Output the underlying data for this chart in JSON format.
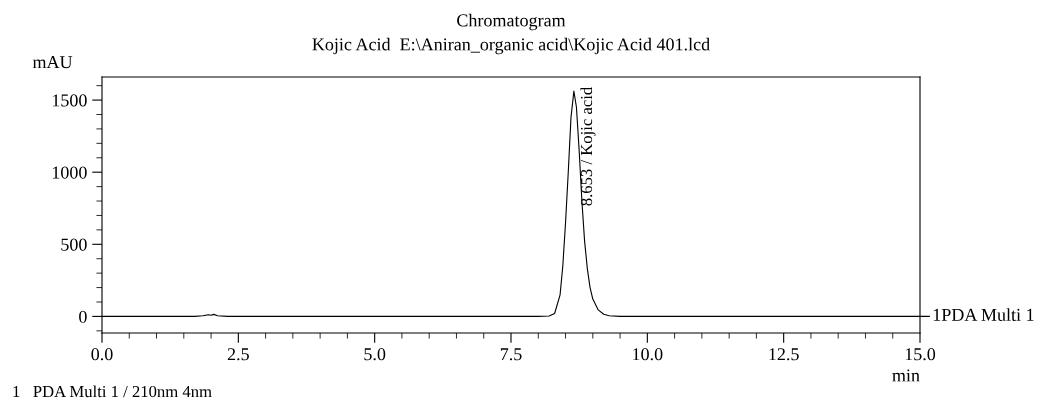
{
  "chart_data": {
    "type": "line",
    "title": "Chromatogram",
    "subtitle": "Kojic Acid  E:\\Aniran_organic acid\\Kojic Acid 401.lcd",
    "xlabel": "min",
    "ylabel": "mAU",
    "series": [
      {
        "name": "1PDA Multi 1",
        "color": "#000000",
        "x": [
          0,
          1.7,
          1.85,
          1.95,
          2.0,
          2.05,
          2.12,
          2.3,
          8.0,
          8.2,
          8.3,
          8.4,
          8.45,
          8.5,
          8.55,
          8.6,
          8.653,
          8.7,
          8.75,
          8.8,
          8.85,
          8.9,
          8.95,
          9.0,
          9.1,
          9.2,
          9.3,
          9.5,
          15
        ],
        "values": [
          0,
          0,
          5,
          12,
          8,
          14,
          5,
          0,
          0,
          3,
          20,
          150,
          350,
          650,
          1000,
          1380,
          1562,
          1450,
          1150,
          800,
          520,
          330,
          200,
          120,
          45,
          15,
          5,
          0,
          0
        ]
      }
    ],
    "xlim": [
      0,
      15
    ],
    "xticks": [
      {
        "value": 0,
        "label": "0.0"
      },
      {
        "value": 2.5,
        "label": "2.5"
      },
      {
        "value": 5,
        "label": "5.0"
      },
      {
        "value": 7.5,
        "label": "7.5"
      },
      {
        "value": 10,
        "label": "10.0"
      },
      {
        "value": 12.5,
        "label": "12.5"
      },
      {
        "value": 15,
        "label": "15.0"
      }
    ],
    "ylim": [
      -115,
      1660
    ],
    "yticks": [
      0,
      500,
      1000,
      1500
    ],
    "annotations": [
      {
        "text": "8.653 / Kojic acid",
        "x": 8.653,
        "y": 1562
      },
      "1   PDA Multi 1 / 210nm 4nm"
    ],
    "grid": false,
    "legend": "right",
    "marker": "none",
    "line_style": "solid"
  }
}
